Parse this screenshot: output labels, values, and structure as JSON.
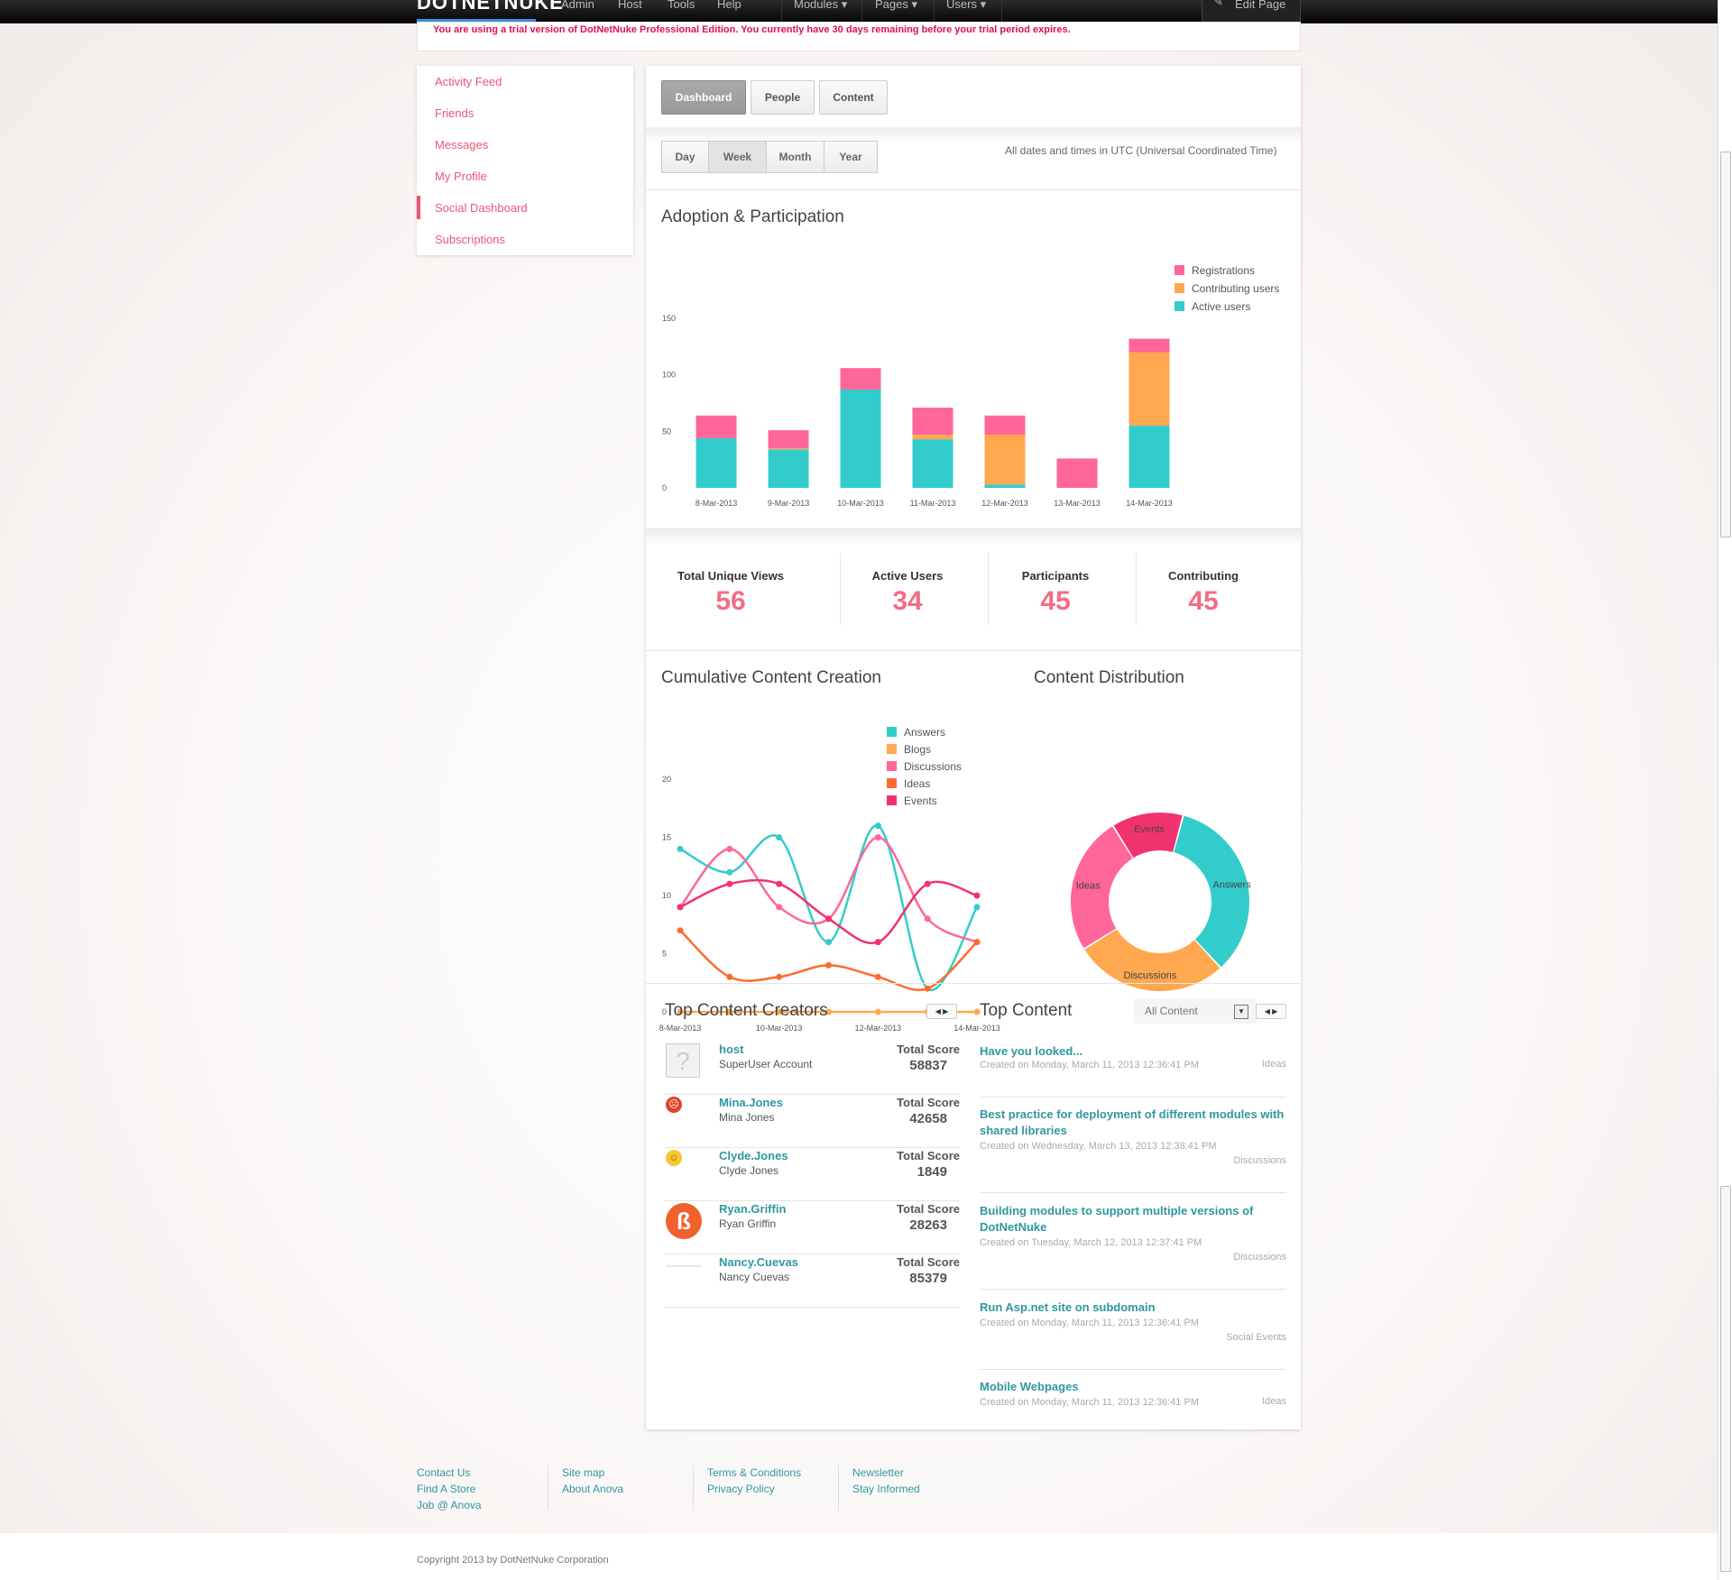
{
  "nav": {
    "logo": "DOTNETNUKE",
    "items": [
      "Admin",
      "Host",
      "Tools",
      "Help"
    ],
    "menus": [
      "Modules",
      "Pages",
      "Users"
    ],
    "edit_page": "Edit Page"
  },
  "trial_notice": "You are using a trial version of DotNetNuke Professional Edition. You currently have 30 days remaining before your trial period expires.",
  "sidebar": {
    "items": [
      "Activity Feed",
      "Friends",
      "Messages",
      "My Profile",
      "Social Dashboard",
      "Subscriptions"
    ],
    "active": "Social Dashboard"
  },
  "tabs": [
    "Dashboard",
    "People",
    "Content"
  ],
  "ranges": [
    "Day",
    "Week",
    "Month",
    "Year"
  ],
  "utc_note": "All dates and times in UTC (Universal Coordinated Time)",
  "adoption_title": "Adoption & Participation",
  "stats": [
    {
      "label": "Total Unique Views",
      "value": "56"
    },
    {
      "label": "Active Users",
      "value": "34"
    },
    {
      "label": "Participants",
      "value": "45"
    },
    {
      "label": "Contributing",
      "value": "45"
    }
  ],
  "cumulative_title": "Cumulative Content Creation",
  "distribution_title": "Content Distribution",
  "colors": {
    "answers": "#33cccc",
    "blogs": "#ffa84f",
    "discussions": "#ff6699",
    "ideas": "#ff6a2c",
    "events": "#f2326e",
    "accent": "#f26d84",
    "link": "#2f97a0"
  },
  "chart_data": [
    {
      "type": "bar",
      "stacked": true,
      "categories": [
        "8-Mar-2013",
        "9-Mar-2013",
        "10-Mar-2013",
        "11-Mar-2013",
        "12-Mar-2013",
        "13-Mar-2013",
        "14-Mar-2013"
      ],
      "series": [
        {
          "name": "Active users",
          "values": [
            44,
            34,
            87,
            43,
            3,
            0,
            55
          ]
        },
        {
          "name": "Contributing users",
          "values": [
            0,
            1,
            0,
            4,
            44,
            0,
            65
          ]
        },
        {
          "name": "Registrations",
          "values": [
            20,
            16,
            19,
            24,
            17,
            26,
            12
          ]
        }
      ],
      "yticks": [
        0,
        50,
        100,
        150
      ],
      "ylim": [
        0,
        150
      ],
      "legend": "top-right"
    },
    {
      "type": "line",
      "x": [
        "8-Mar-2013",
        "9-Mar-2013",
        "10-Mar-2013",
        "11-Mar-2013",
        "12-Mar-2013",
        "13-Mar-2013",
        "14-Mar-2013"
      ],
      "xticks": [
        "8-Mar-2013",
        "10-Mar-2013",
        "12-Mar-2013",
        "14-Mar-2013"
      ],
      "series": [
        {
          "name": "Answers",
          "values": [
            14,
            12,
            15,
            6,
            16,
            2,
            9
          ]
        },
        {
          "name": "Blogs",
          "values": [
            0,
            0,
            0,
            0,
            0,
            0,
            0
          ]
        },
        {
          "name": "Discussions",
          "values": [
            9,
            14,
            9,
            8,
            15,
            8,
            6
          ]
        },
        {
          "name": "Ideas",
          "values": [
            7,
            3,
            3,
            4,
            3,
            2,
            6
          ]
        },
        {
          "name": "Events",
          "values": [
            9,
            11,
            11,
            8,
            6,
            11,
            10
          ]
        }
      ],
      "yticks": [
        0,
        5,
        10,
        15,
        20
      ],
      "ylim": [
        0,
        20
      ],
      "legend": "top-right"
    },
    {
      "type": "pie",
      "donut": true,
      "labels": [
        "Answers",
        "Discussions",
        "Ideas",
        "Events"
      ],
      "values": [
        34,
        28,
        25,
        13
      ]
    }
  ],
  "top_creators": {
    "title": "Top Content Creators",
    "score_label": "Total Score",
    "items": [
      {
        "username": "host",
        "display": "SuperUser Account",
        "score": "58837",
        "avatar": "default-avatar"
      },
      {
        "username": "Mina.Jones",
        "display": "Mina Jones",
        "score": "42658",
        "avatar": "angry-emoji"
      },
      {
        "username": "Clyde.Jones",
        "display": "Clyde Jones",
        "score": "1849",
        "avatar": "smile-emoji"
      },
      {
        "username": "Ryan.Griffin",
        "display": "Ryan Griffin",
        "score": "28263",
        "avatar": "beta-logo"
      },
      {
        "username": "Nancy.Cuevas",
        "display": "Nancy Cuevas",
        "score": "85379",
        "avatar": "blank"
      }
    ]
  },
  "top_content": {
    "title": "Top Content",
    "filter": "All Content",
    "items": [
      {
        "title": "Have you looked...",
        "created": "Created on Monday, March 11, 2013 12:36:41 PM",
        "category": "Ideas"
      },
      {
        "title": "Best practice for deployment of different modules with shared libraries",
        "created": "Created on Wednesday, March 13, 2013 12:38:41 PM",
        "category": "Discussions"
      },
      {
        "title": "Building modules to support multiple versions of DotNetNuke",
        "created": "Created on Tuesday, March 12, 2013 12:37:41 PM",
        "category": "Discussions"
      },
      {
        "title": "Run Asp.net site on subdomain",
        "created": "Created on Monday, March 11, 2013 12:36:41 PM",
        "category": "Social Events"
      },
      {
        "title": "Mobile Webpages",
        "created": "Created on Monday, March 11, 2013 12:36:41 PM",
        "category": "Ideas"
      }
    ]
  },
  "footer": {
    "col1": [
      "Contact Us",
      "Find A Store",
      "Job @ Anova"
    ],
    "col2": [
      "Site map",
      "About Anova"
    ],
    "col3": [
      "Terms & Conditions",
      "Privacy Policy"
    ],
    "col4": [
      "Newsletter",
      "Stay Informed"
    ],
    "copyright": "Copyright 2013 by DotNetNuke Corporation"
  }
}
